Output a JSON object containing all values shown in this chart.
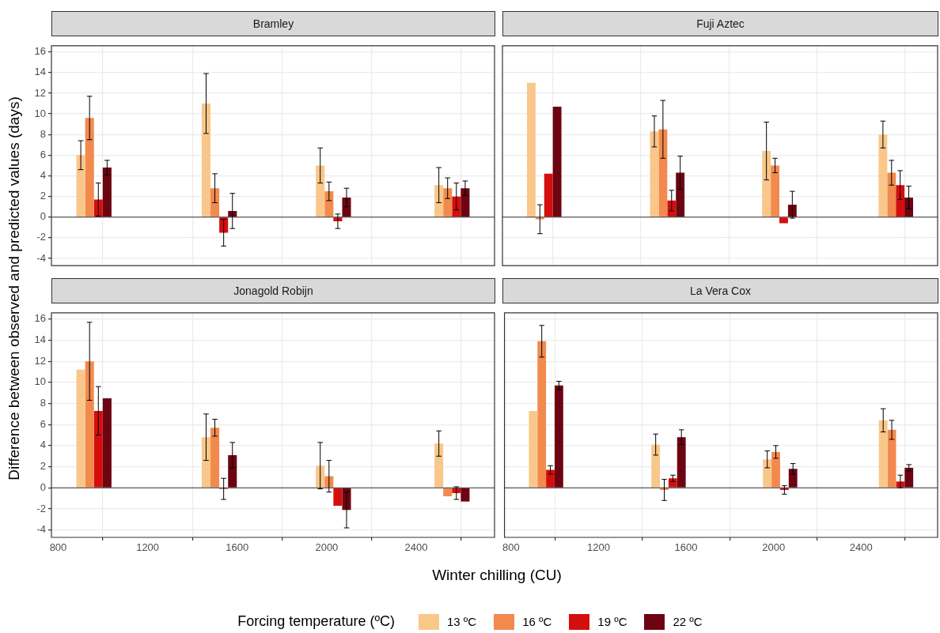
{
  "chart_data": [
    {
      "type": "bar",
      "title": "Bramley",
      "ylabel": "Difference between observed and predicted values (days)",
      "legend": "bottom",
      "legend_title": "Forcing temperature (ºC)",
      "grid": true,
      "tick_labels": "y",
      "x": [
        960,
        1520,
        2030,
        2560
      ],
      "xlim": [
        770,
        2750
      ],
      "xticks": [
        800,
        1200,
        1600,
        2000,
        2400
      ],
      "ylim": [
        -4.7,
        16.6
      ],
      "yticks": [
        -4,
        -2,
        0,
        2,
        4,
        6,
        8,
        10,
        12,
        14,
        16
      ],
      "ref_lines": [
        {
          "axis": "y",
          "value": 0
        }
      ],
      "series": [
        {
          "name": "13 ºC",
          "color": "#f9c78a",
          "values": [
            6.0,
            11.0,
            5.0,
            3.1
          ],
          "errors": [
            1.4,
            2.9,
            1.7,
            1.7
          ]
        },
        {
          "name": "16 ºC",
          "color": "#f28a4e",
          "values": [
            9.6,
            2.8,
            2.5,
            2.8
          ],
          "errors": [
            2.1,
            1.4,
            0.9,
            1.0
          ]
        },
        {
          "name": "19 ºC",
          "color": "#d40e0d",
          "values": [
            1.7,
            -1.5,
            -0.4,
            2.0
          ],
          "errors": [
            1.6,
            1.3,
            0.7,
            1.3
          ]
        },
        {
          "name": "22 ºC",
          "color": "#6d0412",
          "values": [
            4.8,
            0.6,
            1.9,
            2.8
          ],
          "errors": [
            0.7,
            1.7,
            0.9,
            0.7
          ]
        }
      ]
    },
    {
      "type": "bar",
      "title": "Fuji Aztec",
      "grid": true,
      "tick_labels": false,
      "x": [
        960,
        1520,
        2030,
        2560
      ],
      "xlim": [
        770,
        2750
      ],
      "xticks": [
        800,
        1200,
        1600,
        2000,
        2400
      ],
      "ylim": [
        -4.7,
        16.6
      ],
      "yticks": [
        -4,
        -2,
        0,
        2,
        4,
        6,
        8,
        10,
        12,
        14,
        16
      ],
      "ref_lines": [
        {
          "axis": "y",
          "value": 0
        }
      ],
      "series": [
        {
          "color": "#f9c78a",
          "values": [
            13.0,
            8.3,
            6.4,
            8.0
          ],
          "errors": [
            null,
            1.5,
            2.8,
            1.3
          ]
        },
        {
          "color": "#f28a4e",
          "values": [
            -0.2,
            8.5,
            5.0,
            4.3
          ],
          "errors": [
            1.4,
            2.8,
            0.7,
            1.2
          ]
        },
        {
          "color": "#d40e0d",
          "values": [
            4.2,
            1.6,
            -0.6,
            3.1
          ],
          "errors": [
            null,
            1.0,
            null,
            1.4
          ]
        },
        {
          "color": "#6d0412",
          "values": [
            10.7,
            4.3,
            1.2,
            1.9
          ],
          "errors": [
            null,
            1.6,
            1.3,
            1.1
          ]
        }
      ]
    },
    {
      "type": "bar",
      "title": "Jonagold Robijn",
      "xlabel": "Winter chilling (CU)",
      "grid": true,
      "x": [
        960,
        1520,
        2030,
        2560
      ],
      "xlim": [
        770,
        2750
      ],
      "xticks": [
        800,
        1200,
        1600,
        2000,
        2400
      ],
      "ylim": [
        -4.7,
        16.6
      ],
      "yticks": [
        -4,
        -2,
        0,
        2,
        4,
        6,
        8,
        10,
        12,
        14,
        16
      ],
      "ref_lines": [
        {
          "axis": "y",
          "value": 0
        }
      ],
      "series": [
        {
          "color": "#f9c78a",
          "values": [
            11.2,
            4.8,
            2.1,
            4.2
          ],
          "errors": [
            null,
            2.2,
            2.2,
            1.2
          ]
        },
        {
          "color": "#f28a4e",
          "values": [
            12.0,
            5.7,
            1.1,
            -0.8
          ],
          "errors": [
            3.7,
            0.8,
            1.5,
            null
          ]
        },
        {
          "color": "#d40e0d",
          "values": [
            7.3,
            -0.1,
            -1.7,
            -0.5
          ],
          "errors": [
            2.3,
            1.0,
            null,
            0.6
          ]
        },
        {
          "color": "#6d0412",
          "values": [
            8.5,
            3.1,
            -2.1,
            -1.3
          ],
          "errors": [
            null,
            1.2,
            1.7,
            null
          ]
        }
      ]
    },
    {
      "type": "bar",
      "title": "La Vera Cox",
      "grid": true,
      "tick_labels": "x",
      "x": [
        960,
        1520,
        2030,
        2560
      ],
      "xlim": [
        770,
        2750
      ],
      "xticks": [
        800,
        1200,
        1600,
        2000,
        2400
      ],
      "ylim": [
        -4.7,
        16.6
      ],
      "yticks": [
        -4,
        -2,
        0,
        2,
        4,
        6,
        8,
        10,
        12,
        14,
        16
      ],
      "ref_lines": [
        {
          "axis": "y",
          "value": 0
        }
      ],
      "series": [
        {
          "color": "#f9c78a",
          "values": [
            7.3,
            4.1,
            2.7,
            6.4
          ],
          "errors": [
            null,
            1.0,
            0.8,
            1.1
          ]
        },
        {
          "color": "#f28a4e",
          "values": [
            13.9,
            -0.2,
            3.4,
            5.5
          ],
          "errors": [
            1.5,
            1.0,
            0.6,
            0.9
          ]
        },
        {
          "color": "#d40e0d",
          "values": [
            1.7,
            0.9,
            -0.2,
            0.6
          ],
          "errors": [
            0.4,
            0.3,
            0.4,
            0.6
          ]
        },
        {
          "color": "#6d0412",
          "values": [
            9.7,
            4.8,
            1.8,
            1.9
          ],
          "errors": [
            0.4,
            0.7,
            0.5,
            0.3
          ]
        }
      ]
    }
  ]
}
